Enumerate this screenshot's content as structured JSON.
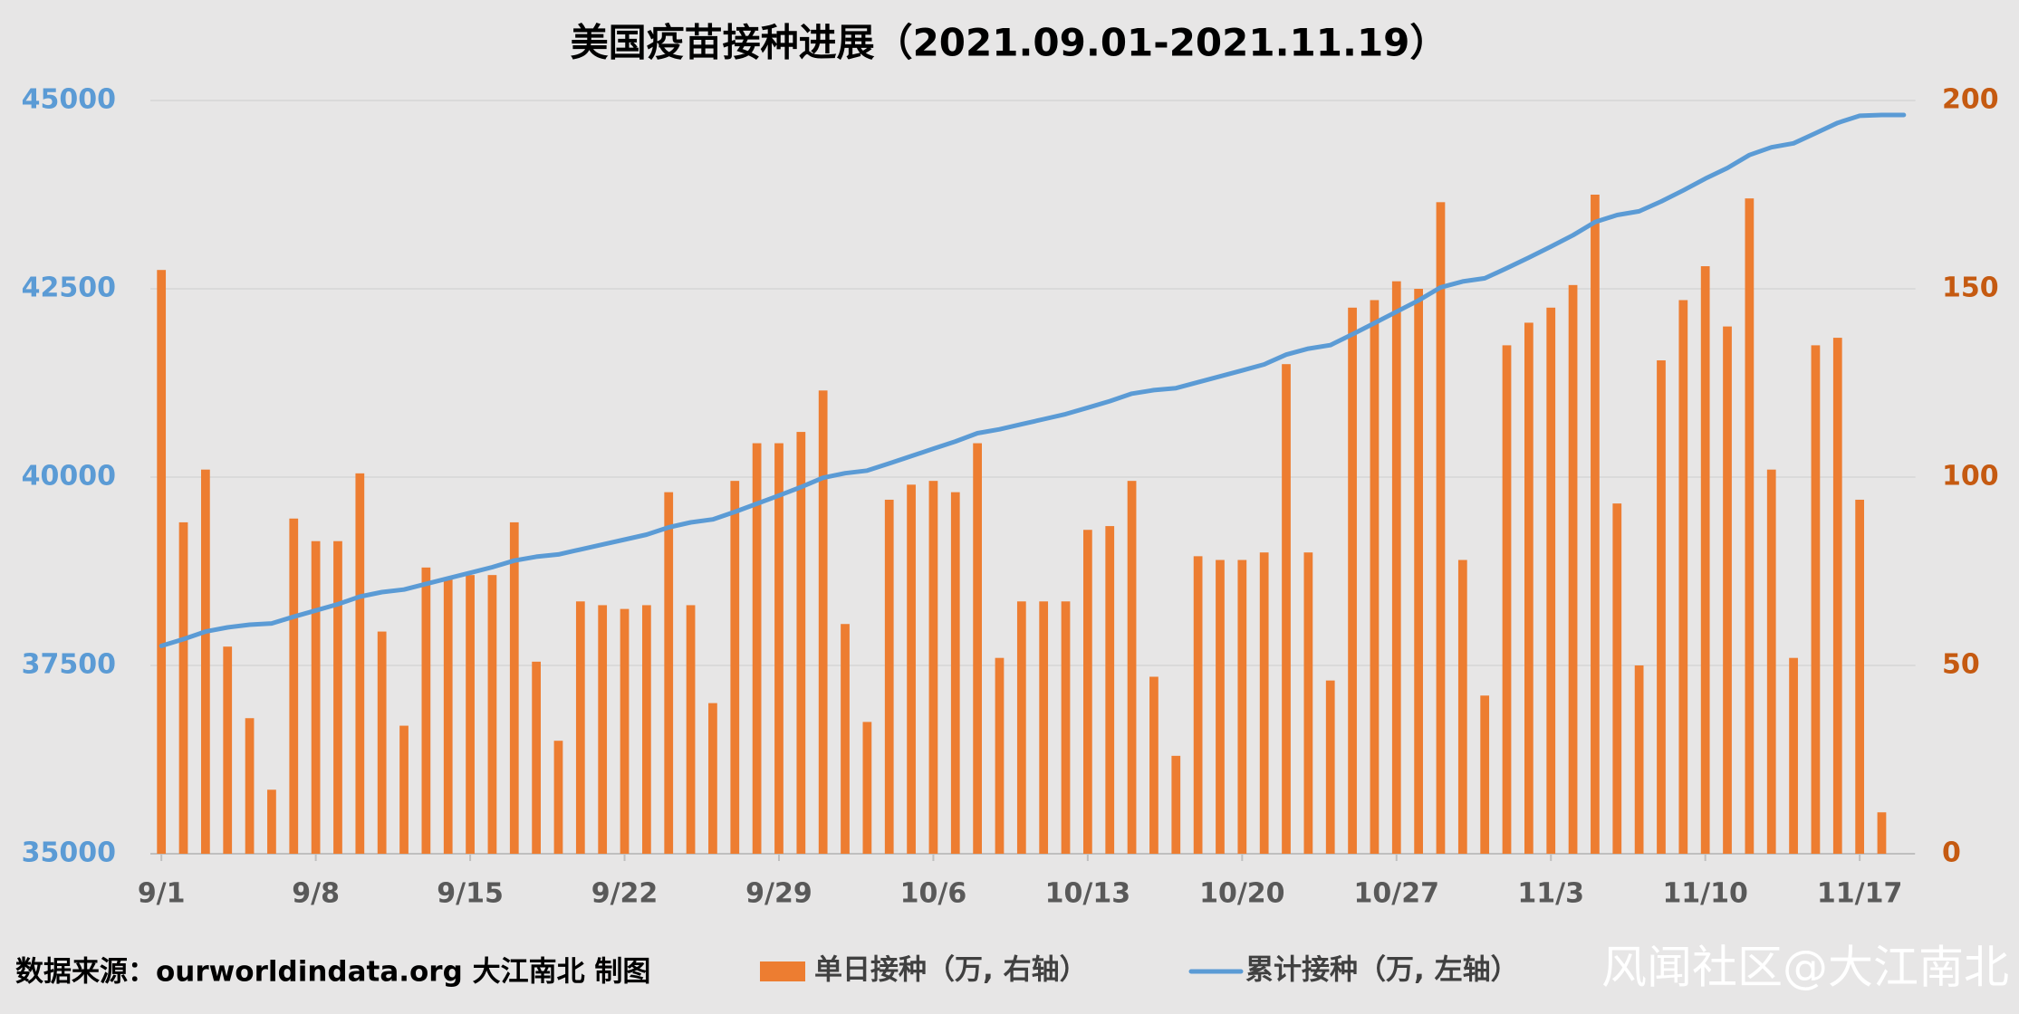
{
  "chart_data": {
    "type": "bar_line",
    "title": "美国疫苗接种进展（2021.09.01-2021.11.19）",
    "source": "数据来源：ourworldindata.org 大江南北 制图",
    "watermark": "风闻社区@大江南北",
    "categories": [
      "9/1",
      null,
      null,
      null,
      null,
      null,
      null,
      "9/8",
      null,
      null,
      null,
      null,
      null,
      null,
      "9/15",
      null,
      null,
      null,
      null,
      null,
      null,
      "9/22",
      null,
      null,
      null,
      null,
      null,
      null,
      "9/29",
      null,
      null,
      null,
      null,
      null,
      null,
      "10/6",
      null,
      null,
      null,
      null,
      null,
      null,
      "10/13",
      null,
      null,
      null,
      null,
      null,
      null,
      "10/20",
      null,
      null,
      null,
      null,
      null,
      null,
      "10/27",
      null,
      null,
      null,
      null,
      null,
      null,
      "11/3",
      null,
      null,
      null,
      null,
      null,
      null,
      "11/10",
      null,
      null,
      null,
      null,
      null,
      null,
      "11/17",
      null,
      null
    ],
    "series": [
      {
        "name": "单日接种（万, 右轴）",
        "type": "bar",
        "axis": "y2",
        "color": "#ed7d31",
        "values": [
          155,
          88,
          102,
          55,
          36,
          17,
          89,
          83,
          83,
          101,
          59,
          34,
          76,
          73,
          74,
          74,
          88,
          51,
          30,
          67,
          66,
          65,
          66,
          96,
          66,
          40,
          99,
          109,
          109,
          112,
          123,
          61,
          35,
          94,
          98,
          99,
          96,
          109,
          52,
          67,
          67,
          67,
          86,
          87,
          99,
          47,
          26,
          79,
          78,
          78,
          80,
          130,
          80,
          46,
          145,
          147,
          152,
          150,
          173,
          78,
          42,
          135,
          141,
          145,
          151,
          175,
          93,
          50,
          131,
          147,
          156,
          140,
          174,
          102,
          52,
          135,
          137,
          94,
          11,
          null
        ]
      },
      {
        "name": "累计接种（万, 左轴）",
        "type": "line",
        "axis": "y",
        "color": "#5b9bd5",
        "values": [
          37760,
          37848,
          37950,
          38005,
          38041,
          38058,
          38147,
          38230,
          38313,
          38414,
          38473,
          38507,
          38583,
          38656,
          38730,
          38804,
          38892,
          38943,
          38973,
          39040,
          39106,
          39171,
          39237,
          39333,
          39399,
          39439,
          39538,
          39647,
          39756,
          39868,
          39991,
          40052,
          40087,
          40181,
          40279,
          40378,
          40474,
          40583,
          40635,
          40702,
          40769,
          40836,
          40922,
          41009,
          41108,
          41155,
          41181,
          41260,
          41338,
          41416,
          41496,
          41626,
          41706,
          41752,
          41897,
          42044,
          42196,
          42346,
          42519,
          42597,
          42639,
          42774,
          42915,
          43060,
          43211,
          43386,
          43479,
          43529,
          43660,
          43807,
          43963,
          44103,
          44277,
          44379,
          44431,
          44566,
          44703,
          44797,
          44808,
          44808
        ]
      }
    ],
    "ylim": [
      35000,
      45000
    ],
    "yticks": [
      35000,
      37500,
      40000,
      42500,
      45000
    ],
    "y2lim": [
      0,
      200
    ],
    "y2ticks": [
      0,
      50,
      100,
      150,
      200
    ],
    "grid": true,
    "legend": "bottom"
  }
}
